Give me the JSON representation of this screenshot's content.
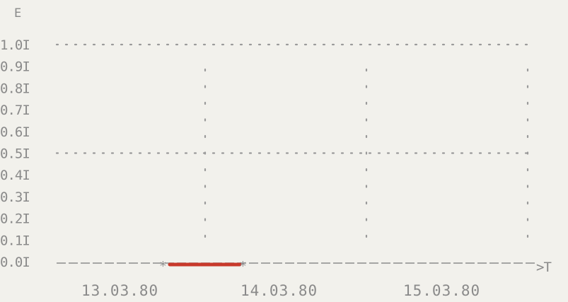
{
  "chart_data": {
    "type": "line",
    "ylabel": "E",
    "xlabel": ">T",
    "ylim": [
      0.0,
      1.0
    ],
    "y_ticks": [
      "1.0I",
      "0.9I",
      "0.8I",
      "0.7I",
      "0.6I",
      "0.5I",
      "0.4I",
      "0.3I",
      "0.2I",
      "0.1I",
      "0.0I"
    ],
    "x_ticks": [
      "13.03.80",
      "14.03.80",
      "15.03.80"
    ],
    "reference_lines": [
      1.0,
      0.5
    ],
    "series": [
      {
        "x": [
          "13.03.80",
          "14.03.80"
        ],
        "y": [
          0.0,
          0.0
        ]
      }
    ],
    "colors": {
      "series": "#c8392b",
      "text": "#8a8a8a",
      "grid": "#9a9a9a",
      "background": "#f2f1ec"
    }
  }
}
